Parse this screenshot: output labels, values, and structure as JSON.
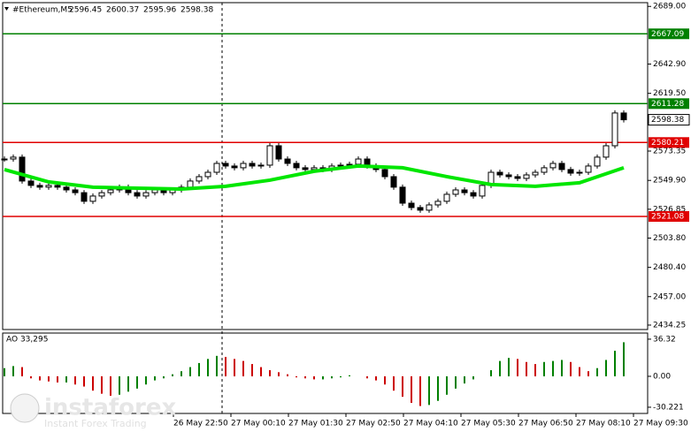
{
  "chart_data": [
    {
      "type": "candlestick",
      "title": "#Ethereum,M5",
      "ohlc": [
        2596.45,
        2600.37,
        2595.96,
        2598.38
      ],
      "xlim": [
        -0.2,
        72.7
      ],
      "ylim": [
        2430.7,
        2692
      ],
      "yticks": [
        {
          "value": 2689,
          "label": "2689.00"
        },
        {
          "value": 2642.9,
          "label": "2642.90"
        },
        {
          "value": 2619.5,
          "label": "2619.50"
        },
        {
          "value": 2573.35,
          "label": "2573.35"
        },
        {
          "value": 2549.9,
          "label": "2549.90"
        },
        {
          "value": 2526.85,
          "label": "2526.85"
        },
        {
          "value": 2503.8,
          "label": "2503.80"
        },
        {
          "value": 2480.4,
          "label": "2480.40"
        },
        {
          "value": 2457,
          "label": "2457.00"
        },
        {
          "value": 2434.25,
          "label": "2434.25"
        }
      ],
      "xticks": [
        {
          "value": 19.1,
          "label": "26 May 22:50"
        },
        {
          "value": 25.6,
          "label": "27 May 00:10"
        },
        {
          "value": 32.1,
          "label": "27 May 01:30"
        },
        {
          "value": 38.6,
          "label": "27 May 02:50"
        },
        {
          "value": 45.1,
          "label": "27 May 04:10"
        },
        {
          "value": 51.6,
          "label": "27 May 05:30"
        },
        {
          "value": 58.1,
          "label": "27 May 06:50"
        },
        {
          "value": 64.6,
          "label": "27 May 08:10"
        },
        {
          "value": 71.1,
          "label": "27 May 09:30"
        }
      ],
      "series": [
        {
          "color": "#000000",
          "values": [
            2567.0,
            2568.5,
            2549.4,
            2545.9,
            2544.5,
            2545.9,
            2544.5,
            2542.3,
            2540.1,
            2533.2,
            2537.4,
            2540.1,
            2542.3,
            2544.5,
            2540.1,
            2537.4,
            2540.1,
            2542.3,
            2540.1,
            2542.3,
            2544.5,
            2549.4,
            2552.9,
            2556.4,
            2563.5,
            2561.4,
            2560.0,
            2563.5,
            2561.4,
            2562.1,
            2577.6,
            2567.0,
            2563.5,
            2560.0,
            2558.6,
            2560.0,
            2558.6,
            2561.4,
            2562.1,
            2562.8,
            2567.0,
            2561.4,
            2558.6,
            2552.9,
            2544.5,
            2531.7,
            2528.2,
            2526.1,
            2530.3,
            2533.2,
            2538.8,
            2542.3,
            2540.1,
            2537.4,
            2545.9,
            2556.4,
            2554.3,
            2552.9,
            2551.5,
            2554.3,
            2556.4,
            2560.0,
            2563.5,
            2558.6,
            2555.7,
            2556.4,
            2561.4,
            2568.5,
            2577.6,
            2603.8,
            2598.38
          ]
        },
        {
          "color": "#00e600",
          "x": [
            0,
            5,
            10,
            15,
            20,
            25,
            30,
            35,
            40,
            45,
            50,
            55,
            60,
            65,
            70
          ],
          "values": [
            2558.6,
            2548.7,
            2544.5,
            2543.7,
            2543.0,
            2545.2,
            2550.1,
            2557.2,
            2561.4,
            2560.0,
            2552.9,
            2546.6,
            2545.2,
            2548.0,
            2560.0
          ]
        }
      ],
      "levels": [
        {
          "value": 2667.09,
          "color": "#008000"
        },
        {
          "value": 2611.28,
          "color": "#008000"
        },
        {
          "value": 2580.21,
          "color": "#e00000"
        },
        {
          "value": 2521.08,
          "color": "#e00000"
        }
      ],
      "last_price": 2598.38
    },
    {
      "type": "bar",
      "title": "AO 33,295",
      "xlim": [
        -0.2,
        72.7
      ],
      "ylim": [
        -36.3,
        42.3
      ],
      "yticks": [
        36.32,
        {
          "value": 0,
          "label": "0.00"
        },
        -30.221
      ],
      "up_color": "#008000",
      "down_color": "#cc0000",
      "values": [
        8,
        10,
        9,
        -2,
        -4,
        -5,
        -6,
        -6,
        -8,
        -10,
        -14,
        -17,
        -19,
        -18,
        -15,
        -12,
        -8,
        -4,
        -2,
        2,
        5,
        9,
        13,
        17,
        20,
        19,
        17,
        15,
        12,
        9,
        6,
        4,
        2,
        -1,
        -2,
        -3,
        -3,
        -2,
        -1,
        1,
        0,
        -2,
        -4,
        -8,
        -14,
        -20,
        -26,
        -29,
        -28,
        -24,
        -18,
        -12,
        -7,
        -3,
        0,
        6,
        15,
        18,
        17,
        14,
        12,
        14,
        15,
        16,
        14,
        9,
        5,
        8,
        16,
        25,
        33.3
      ]
    }
  ],
  "watermark": {
    "brand": "instaforex",
    "tagline": "Instant Forex Trading"
  }
}
